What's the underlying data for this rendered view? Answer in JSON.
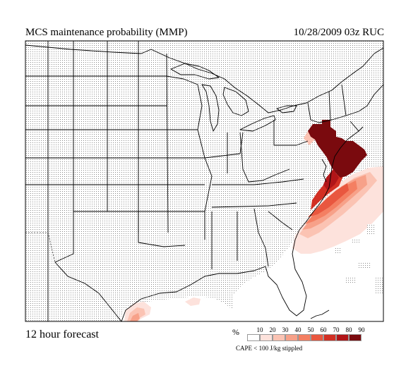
{
  "title": "MCS maintenance probability (MMP)",
  "timestamp": "10/28/2009  03z  RUC",
  "forecast_label": "12 hour forecast",
  "legend": {
    "unit": "%",
    "ticks": [
      "10",
      "20",
      "30",
      "40",
      "50",
      "60",
      "70",
      "80",
      "90"
    ],
    "colors": [
      "#ffffff",
      "#fde2dc",
      "#fbc3b3",
      "#f7a189",
      "#f47f62",
      "#e9573f",
      "#d22f23",
      "#b11518",
      "#7a0a0e"
    ],
    "note": "CAPE < 100 J/kg stippled"
  },
  "colors": {
    "land": "#ffffff",
    "border": "#000000",
    "stipple": "#7a7a7a"
  }
}
